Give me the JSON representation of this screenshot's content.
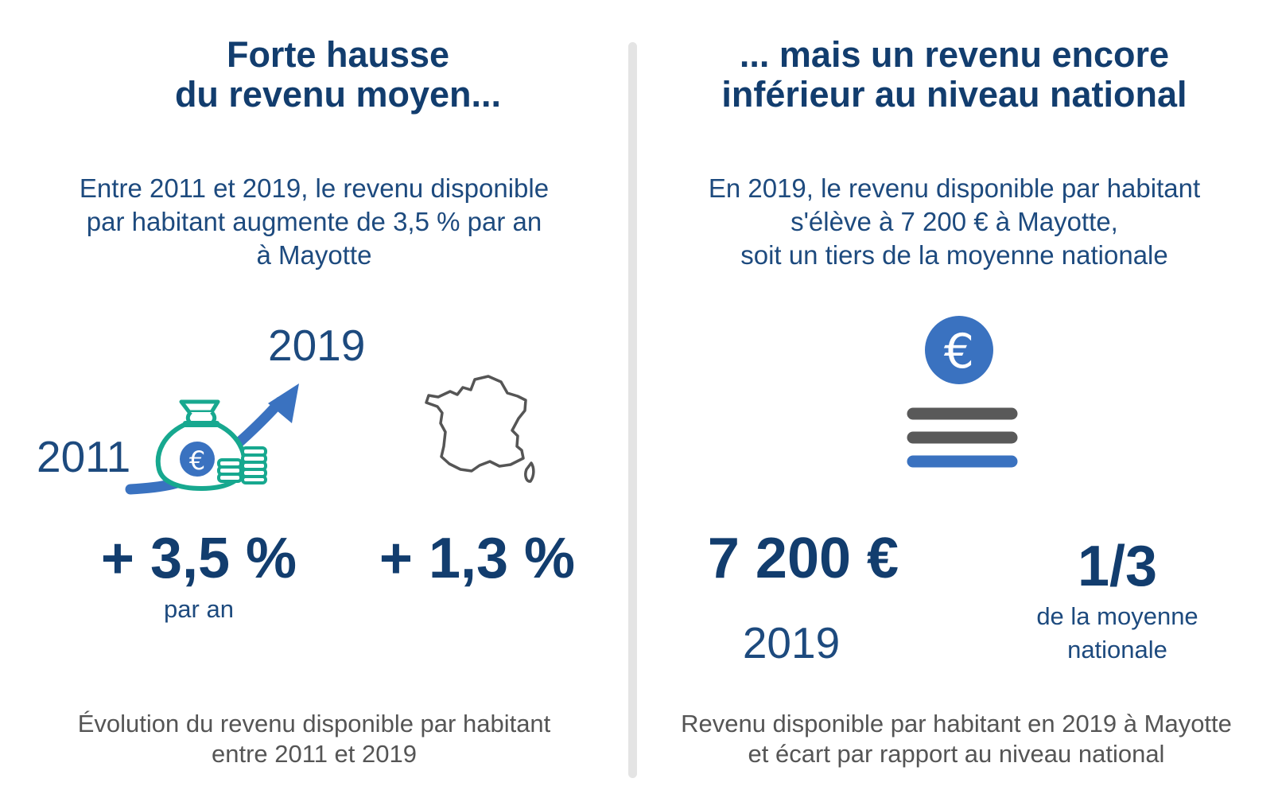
{
  "left": {
    "title_line1": "Forte hausse",
    "title_line2": "du revenu moyen...",
    "lead_line1": "Entre 2011 et 2019, le revenu disponible",
    "lead_line2": "par habitant augmente de 3,5 % par an",
    "lead_line3": "à Mayotte",
    "year_start": "2011",
    "year_end": "2019",
    "mayotte_rate": "+ 3,5 %",
    "mayotte_rate_unit": "par an",
    "france_rate": "+ 1,3 %",
    "caption_line1": "Évolution du revenu disponible par habitant",
    "caption_line2": "entre 2011 et 2019",
    "icons": [
      "money-bag-icon",
      "trend-arrow-icon",
      "coin-stack-icon",
      "france-map-icon"
    ]
  },
  "right": {
    "title_line1": "... mais un revenu encore",
    "title_line2": "inférieur au niveau national",
    "lead_line1": "En 2019, le revenu disponible par habitant",
    "lead_line2": "s'élève à 7 200 € à Mayotte,",
    "lead_line3": "soit un tiers de la moyenne nationale",
    "euro_symbol": "€",
    "amount": "7 200 €",
    "amount_year": "2019",
    "ratio": "1/3",
    "ratio_label_line1": "de la moyenne",
    "ratio_label_line2": "nationale",
    "caption_line1": "Revenu disponible par habitant en 2019 à Mayotte",
    "caption_line2": "et écart par rapport au niveau national",
    "icons": [
      "euro-coin-icon",
      "equals-bars-icon"
    ]
  },
  "colors": {
    "dark_blue": "#123d6e",
    "text_blue": "#1d4a7e",
    "accent_blue": "#3a72c0",
    "teal": "#17a88f",
    "grey_bar": "#595959",
    "divider": "#e4e4e4"
  }
}
